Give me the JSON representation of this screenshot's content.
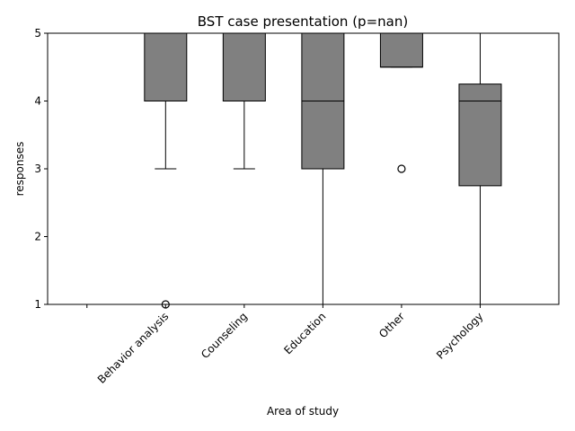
{
  "chart_data": {
    "type": "box",
    "title": "BST case presentation (p=nan)",
    "xlabel": "Area of study",
    "ylabel": "responses",
    "ylim": [
      1,
      5
    ],
    "yticks": [
      "1",
      "2",
      "3",
      "4",
      "5"
    ],
    "categories": [
      "",
      "Behavior analysis",
      "Counseling",
      "Education",
      "Other",
      "Psychology"
    ],
    "boxes": [
      null,
      {
        "whislo": 3,
        "q1": 4,
        "med": 5,
        "q3": 5,
        "whishi": 5,
        "fliers": [
          1
        ]
      },
      {
        "whislo": 3,
        "q1": 4,
        "med": 5,
        "q3": 5,
        "whishi": 5,
        "fliers": []
      },
      {
        "whislo": 1,
        "q1": 3,
        "med": 4,
        "q3": 5,
        "whishi": 5,
        "fliers": []
      },
      {
        "whislo": 4.5,
        "q1": 4.5,
        "med": 4.5,
        "q3": 5,
        "whishi": 5,
        "fliers": [
          3
        ]
      },
      {
        "whislo": 1,
        "q1": 2.75,
        "med": 4,
        "q3": 4.25,
        "whishi": 5,
        "fliers": []
      }
    ],
    "box_color": "#808080",
    "grid": false,
    "legend": false
  }
}
